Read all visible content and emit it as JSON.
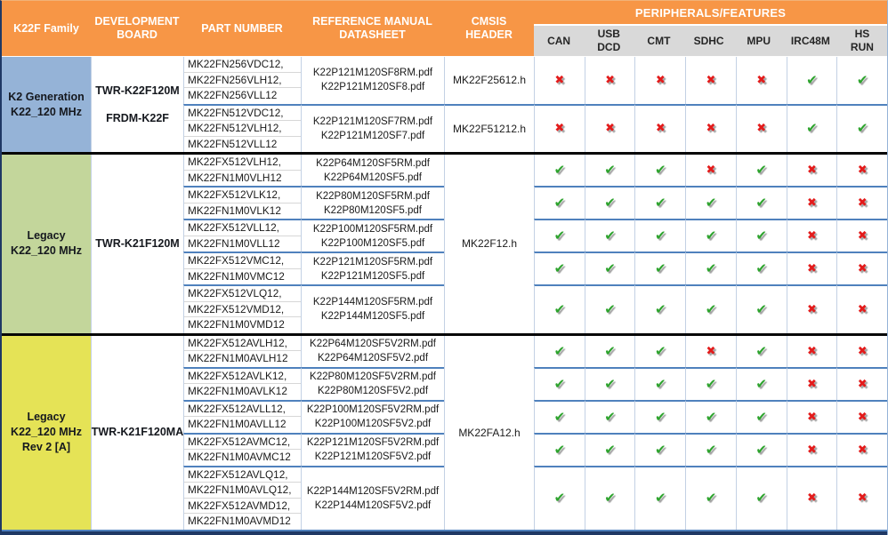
{
  "colors": {
    "header-orange": "#f79646",
    "subheader-gray": "#d9d9d9",
    "family-blue": "#95b3d7",
    "family-green": "#c3d69b",
    "family-yellow": "#e5e356",
    "row-sep": "#4f81bd",
    "grid-line": "#c3d1e4",
    "part-sep": "#d7d7d7",
    "outer-dark": "#1f3864",
    "check-green": "#2da32d",
    "cross-red": "#e31b1b"
  },
  "icons": {
    "check": "✔",
    "cross": "✖"
  },
  "header": {
    "family": "K22F Family",
    "board": "DEVELOPMENT BOARD",
    "part": "PART NUMBER",
    "datasheet": "REFERENCE MANUAL DATASHEET",
    "cmsis": "CMSIS HEADER",
    "peripherals_title": "PERIPHERALS/FEATURES",
    "peripherals": [
      "CAN",
      "USB DCD",
      "CMT",
      "SDHC",
      "MPU",
      "IRC48M",
      "HS RUN"
    ]
  },
  "groups": [
    {
      "family_lines": [
        "K2 Generation",
        "K22_120 MHz"
      ],
      "family_bg": "#95b3d7",
      "board_lines": [
        "TWR-K22F120M",
        "FRDM-K22F"
      ],
      "rows": [
        {
          "parts": [
            "MK22FN256VDC12,",
            "MK22FN256VLH12,",
            "MK22FN256VLL12"
          ],
          "datasheets": [
            "K22P121M120SF8RM.pdf",
            "K22P121M120SF8.pdf"
          ],
          "cmsis": "MK22F25612.h",
          "features": [
            false,
            false,
            false,
            false,
            false,
            true,
            true
          ]
        },
        {
          "parts": [
            "MK22FN512VDC12,",
            "MK22FN512VLH12,",
            "MK22FN512VLL12"
          ],
          "datasheets": [
            "K22P121M120SF7RM.pdf",
            "K22P121M120SF7.pdf"
          ],
          "cmsis": "MK22F51212.h",
          "features": [
            false,
            false,
            false,
            false,
            false,
            true,
            true
          ]
        }
      ]
    },
    {
      "family_lines": [
        "Legacy",
        "K22_120 MHz"
      ],
      "family_bg": "#c3d69b",
      "board_lines": [
        "TWR-K21F120M"
      ],
      "cmsis": "MK22F12.h",
      "rows": [
        {
          "parts": [
            "MK22FX512VLH12,",
            "MK22FN1M0VLH12"
          ],
          "datasheets": [
            "K22P64M120SF5RM.pdf",
            "K22P64M120SF5.pdf"
          ],
          "features": [
            true,
            true,
            true,
            false,
            true,
            false,
            false
          ]
        },
        {
          "parts": [
            "MK22FX512VLK12,",
            "MK22FN1M0VLK12"
          ],
          "datasheets": [
            "K22P80M120SF5RM.pdf",
            "K22P80M120SF5.pdf"
          ],
          "features": [
            true,
            true,
            true,
            true,
            true,
            false,
            false
          ]
        },
        {
          "parts": [
            "MK22FX512VLL12,",
            "MK22FN1M0VLL12"
          ],
          "datasheets": [
            "K22P100M120SF5RM.pdf",
            "K22P100M120SF5.pdf"
          ],
          "features": [
            true,
            true,
            true,
            true,
            true,
            false,
            false
          ]
        },
        {
          "parts": [
            "MK22FX512VMC12,",
            "MK22FN1M0VMC12"
          ],
          "datasheets": [
            "K22P121M120SF5RM.pdf",
            "K22P121M120SF5.pdf"
          ],
          "features": [
            true,
            true,
            true,
            true,
            true,
            false,
            false
          ]
        },
        {
          "parts": [
            "MK22FX512VLQ12,",
            "MK22FX512VMD12,",
            "MK22FN1M0VMD12"
          ],
          "datasheets": [
            "K22P144M120SF5RM.pdf",
            "K22P144M120SF5.pdf"
          ],
          "features": [
            true,
            true,
            true,
            true,
            true,
            false,
            false
          ]
        }
      ]
    },
    {
      "family_lines": [
        "Legacy",
        "K22_120 MHz",
        "Rev 2 [A]"
      ],
      "family_bg": "#e5e356",
      "board_lines": [
        "TWR-K21F120MA"
      ],
      "cmsis": "MK22FA12.h",
      "rows": [
        {
          "parts": [
            "MK22FX512AVLH12,",
            "MK22FN1M0AVLH12"
          ],
          "datasheets": [
            "K22P64M120SF5V2RM.pdf",
            "K22P64M120SF5V2.pdf"
          ],
          "features": [
            true,
            true,
            true,
            false,
            true,
            false,
            false
          ]
        },
        {
          "parts": [
            "MK22FX512AVLK12,",
            "MK22FN1M0AVLK12"
          ],
          "datasheets": [
            "K22P80M120SF5V2RM.pdf",
            "K22P80M120SF5V2.pdf"
          ],
          "features": [
            true,
            true,
            true,
            true,
            true,
            false,
            false
          ]
        },
        {
          "parts": [
            "MK22FX512AVLL12,",
            "MK22FN1M0AVLL12"
          ],
          "datasheets": [
            "K22P100M120SF5V2RM.pdf",
            "K22P100M120SF5V2.pdf"
          ],
          "features": [
            true,
            true,
            true,
            true,
            true,
            false,
            false
          ]
        },
        {
          "parts": [
            "MK22FX512AVMC12,",
            "MK22FN1M0AVMC12"
          ],
          "datasheets": [
            "K22P121M120SF5V2RM.pdf",
            "K22P121M120SF5V2.pdf"
          ],
          "features": [
            true,
            true,
            true,
            true,
            true,
            false,
            false
          ]
        },
        {
          "parts": [
            "MK22FX512AVLQ12,",
            "MK22FN1M0AVLQ12,",
            "MK22FX512AVMD12,",
            "MK22FN1M0AVMD12"
          ],
          "datasheets": [
            "K22P144M120SF5V2RM.pdf",
            "K22P144M120SF5V2.pdf"
          ],
          "features": [
            true,
            true,
            true,
            true,
            true,
            false,
            false
          ]
        }
      ]
    }
  ]
}
